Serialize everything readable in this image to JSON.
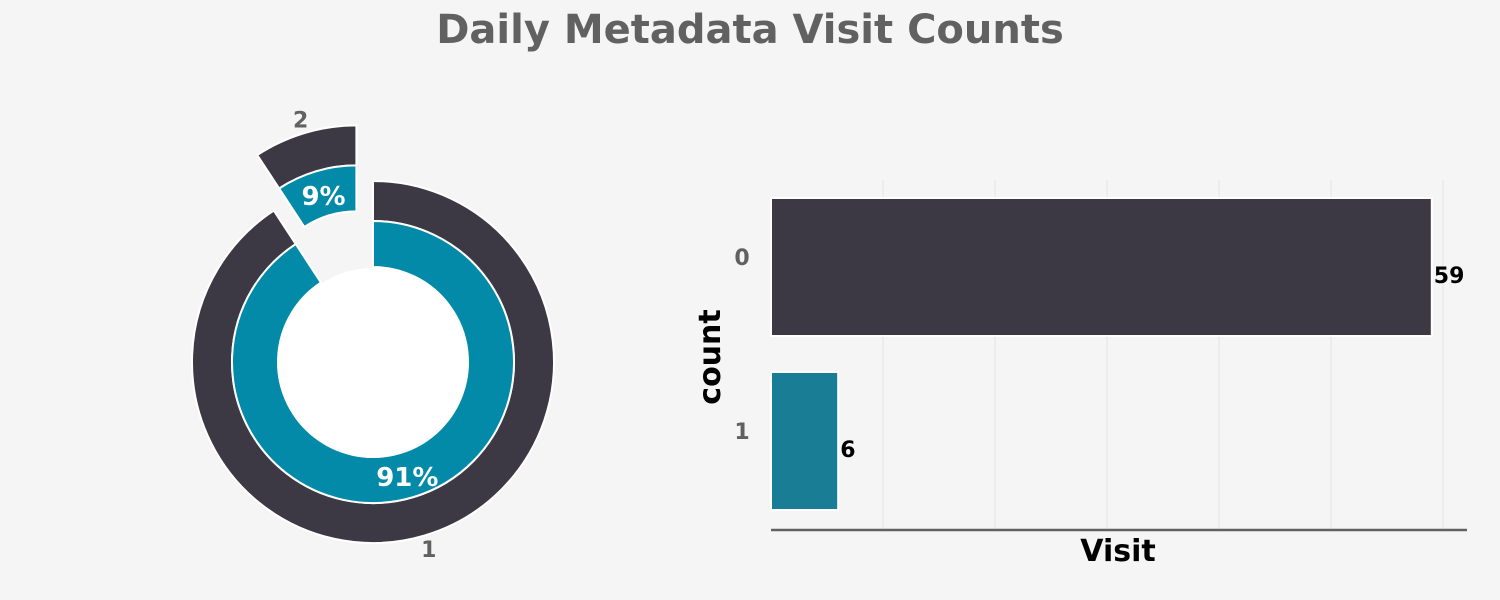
{
  "title": "Daily Metadata Visit Counts",
  "colors": {
    "background": "#f5f5f5",
    "dark": "#3c3945",
    "teal": "#028aa8",
    "teal_bar": "#1a7d96",
    "grid": "#e6e6e6",
    "axis": "#616161"
  },
  "chart_data": [
    {
      "type": "pie",
      "subtype": "nested-donut",
      "title": "",
      "slices": [
        {
          "label": "1",
          "value": 59,
          "pct_label": "91%"
        },
        {
          "label": "2",
          "value": 6,
          "pct_label": "9%"
        }
      ],
      "exploded": "2"
    },
    {
      "type": "bar",
      "orientation": "horizontal",
      "categories": [
        "0",
        "1"
      ],
      "values": [
        59,
        6
      ],
      "data_labels": [
        "59",
        "6"
      ],
      "xlabel": "Visit",
      "ylabel": "count",
      "xlim": [
        0,
        62
      ],
      "grid": true
    }
  ]
}
